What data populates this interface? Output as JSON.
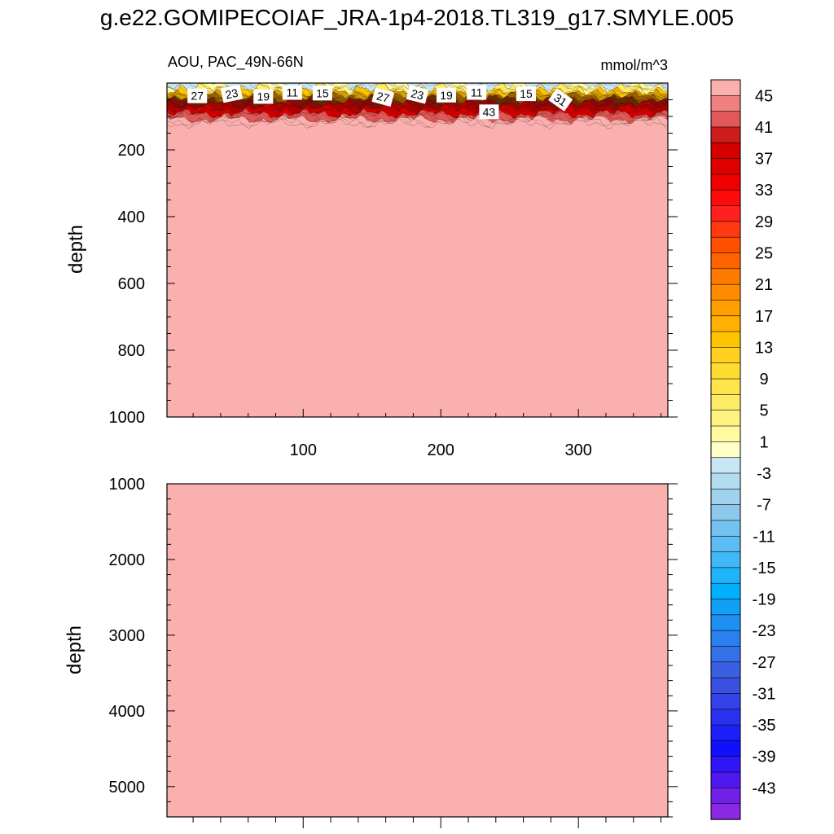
{
  "title": "g.e22.GOMIPECOIAF_JRA-1p4-2018.TL319_g17.SMYLE.005",
  "chart_data": {
    "type": "heatmap",
    "variable_label": "AOU, PAC_49N-66N",
    "units": "mmol/m^3",
    "x_ticks": [
      100,
      200,
      300
    ],
    "x_range": [
      1,
      365
    ],
    "colorbar": {
      "labels": [
        45,
        41,
        37,
        33,
        29,
        25,
        21,
        17,
        13,
        9,
        5,
        1,
        -3,
        -7,
        -11,
        -15,
        -19,
        -23,
        -27,
        -31,
        -35,
        -39,
        -43
      ],
      "colors": [
        "#fbb0b0",
        "#f08080",
        "#e05858",
        "#cc1c1c",
        "#d40000",
        "#e00000",
        "#f00000",
        "#ff0a0a",
        "#ff2020",
        "#ff3a10",
        "#ff5000",
        "#ff6400",
        "#ff7a00",
        "#ff8c00",
        "#ffa000",
        "#ffb000",
        "#ffc400",
        "#ffd020",
        "#ffdc30",
        "#ffe44c",
        "#ffec66",
        "#fff380",
        "#fffaa0",
        "#ffffc8",
        "#c8e6f4",
        "#b4dcf0",
        "#a0d2ee",
        "#8cc8ec",
        "#74c2f0",
        "#5cbdf5",
        "#40b8f8",
        "#1eb4fa",
        "#00b0fb",
        "#10a0f6",
        "#1e90f2",
        "#2a80ee",
        "#3470e8",
        "#3a60e2",
        "#3a50e0",
        "#3440e8",
        "#2a30f0",
        "#1c20f8",
        "#1010ff",
        "#3016f6",
        "#5018f0",
        "#7020e8",
        "#8a28e4"
      ]
    },
    "panels": [
      {
        "name": "upper",
        "ylabel": "depth",
        "ylim": [
          0,
          1000
        ],
        "y_ticks": [
          200,
          400,
          600,
          800,
          1000
        ],
        "contour_labels": [
          "27",
          "23",
          "19",
          "11",
          "15",
          "27",
          "23",
          "19",
          "11",
          "15",
          "31",
          "43"
        ],
        "background_value": 45
      },
      {
        "name": "lower",
        "ylabel": "depth",
        "ylim": [
          1000,
          5400
        ],
        "y_ticks": [
          1000,
          2000,
          3000,
          4000,
          5000
        ],
        "background_value": 45
      }
    ]
  }
}
